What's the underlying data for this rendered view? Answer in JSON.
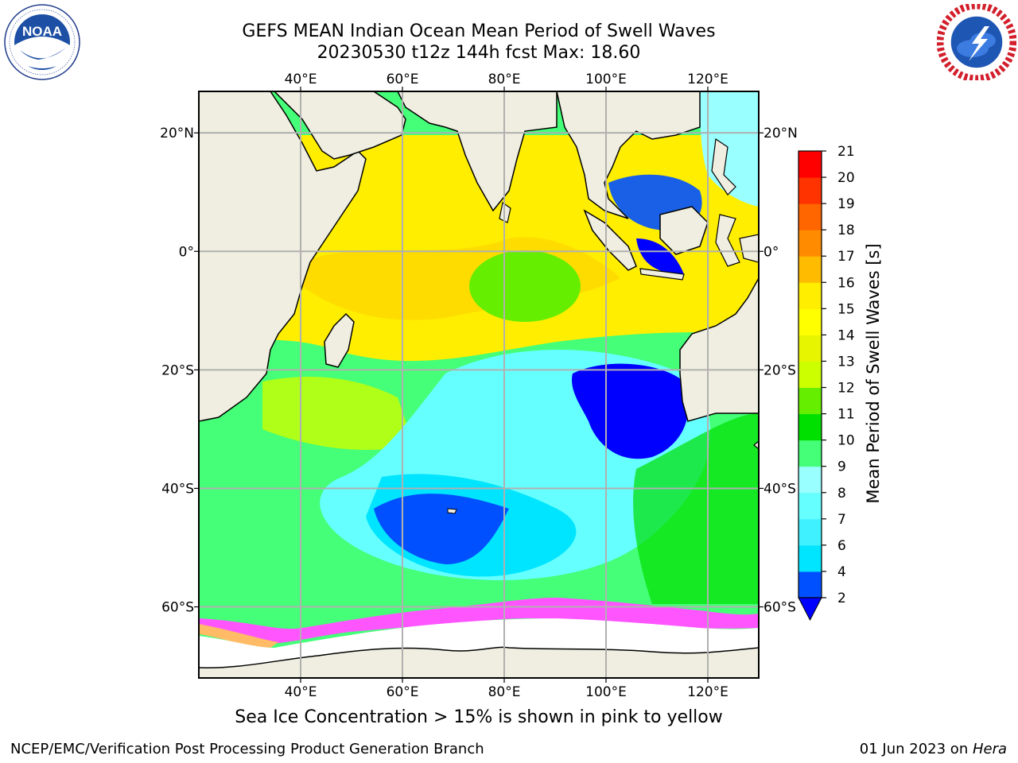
{
  "title": {
    "line1": "GEFS MEAN Indian Ocean Mean Period of Swell Waves",
    "line2": "20230530 t12z 144h fcst   Max: 18.60"
  },
  "logos": {
    "left": {
      "name": "noaa-logo",
      "text": "NOAA",
      "ring": "NATIONAL OCEANIC AND ATMOSPHERIC ADMINISTRATION · U.S. DEPARTMENT OF COMMERCE"
    },
    "right": {
      "name": "nws-logo",
      "ring": "NATIONAL WEATHER SERVICE"
    }
  },
  "map": {
    "projection": "equirectangular",
    "lon_range": [
      20,
      130
    ],
    "lat_range": [
      -72,
      27
    ],
    "x_ticks": [
      {
        "lon": 40,
        "label": "40°E"
      },
      {
        "lon": 60,
        "label": "60°E"
      },
      {
        "lon": 80,
        "label": "80°E"
      },
      {
        "lon": 100,
        "label": "100°E"
      },
      {
        "lon": 120,
        "label": "120°E"
      }
    ],
    "y_ticks": [
      {
        "lat": 20,
        "label": "20°N"
      },
      {
        "lat": 0,
        "label": "0°"
      },
      {
        "lat": -20,
        "label": "20°S"
      },
      {
        "lat": -40,
        "label": "40°S"
      },
      {
        "lat": -60,
        "label": "60°S"
      }
    ],
    "grid": true,
    "colors": {
      "land": "#efeee0",
      "sea_ice": "#ffffff",
      "coast": "#000000",
      "grid": "#b0b0b0"
    }
  },
  "colorbar": {
    "label": "Mean Period of Swell Waves [s]",
    "levels": [
      2,
      4,
      6,
      7,
      8,
      9,
      10,
      11,
      12,
      13,
      14,
      15,
      16,
      17,
      18,
      19,
      20,
      21
    ],
    "tick_labels": [
      "2",
      "4",
      "6",
      "7",
      "8",
      "9",
      "10",
      "11",
      "12",
      "13",
      "14",
      "15",
      "16",
      "17",
      "18",
      "19",
      "20",
      "21"
    ],
    "colors": [
      "#0050ff",
      "#00e5ff",
      "#3ff0ff",
      "#66ffff",
      "#99ffff",
      "#44ff77",
      "#00e000",
      "#66ee00",
      "#ccff00",
      "#e8f500",
      "#ffff00",
      "#ffee00",
      "#ffbb00",
      "#ff8c00",
      "#ff6600",
      "#ff3300",
      "#ff0000"
    ],
    "extend_min": true,
    "extend_min_color": "#0000ff"
  },
  "caption": "Sea Ice Concentration > 15% is shown in pink to yellow",
  "footer": {
    "left": "NCEP/EMC/Verification Post Processing Product Generation Branch",
    "right_date": "01 Jun 2023 on ",
    "right_host": "Hera"
  }
}
